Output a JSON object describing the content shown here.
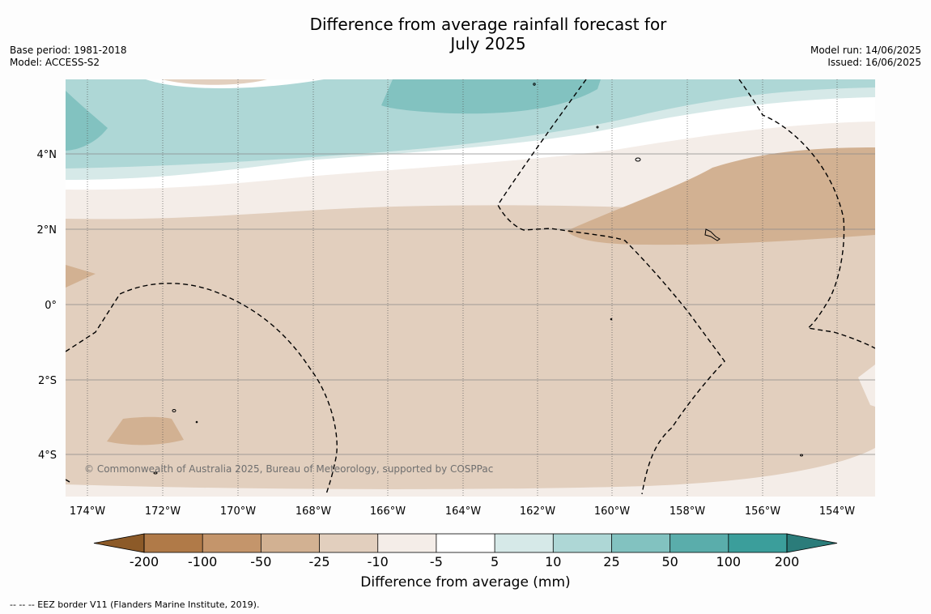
{
  "title_line1": "Difference from average rainfall forecast for",
  "title_line2": "July 2025",
  "meta_left": {
    "base_period": "Base period: 1981-2018",
    "model": "Model: ACCESS-S2"
  },
  "meta_right": {
    "model_run": "Model run: 14/06/2025",
    "issued": "Issued: 16/06/2025"
  },
  "lat_labels": [
    "4°N",
    "2°N",
    "0°",
    "2°S",
    "4°S"
  ],
  "lon_labels": [
    "174°W",
    "172°W",
    "170°W",
    "168°W",
    "166°W",
    "164°W",
    "162°W",
    "160°W",
    "158°W",
    "156°W",
    "154°W"
  ],
  "copyright": "© Commonwealth of Australia 2025, Bureau of Meteorology, supported by COSPPac",
  "colorbar": {
    "title": "Difference from average (mm)",
    "tick_labels": [
      "-200",
      "-100",
      "-50",
      "-25",
      "-10",
      "-5",
      "5",
      "10",
      "25",
      "50",
      "100",
      "200"
    ],
    "colors": [
      "#8c5a28",
      "#b07a48",
      "#c4956b",
      "#d2b192",
      "#e2cfbe",
      "#f4ede8",
      "#ffffff",
      "#d6e9e8",
      "#aed7d6",
      "#82c2c0",
      "#5aadab",
      "#3b9e9b",
      "#2b7c7a"
    ]
  },
  "footer": "--  --  -- EEZ border V11 (Flanders Marine Institute, 2019).",
  "colors": {
    "dry_strong": "#d2b192",
    "dry": "#e2cfbe",
    "dry_light": "#f4ede8",
    "neutral": "#ffffff",
    "wet_light": "#d6e9e8",
    "wet": "#aed7d6",
    "wet_strong": "#82c2c0"
  }
}
